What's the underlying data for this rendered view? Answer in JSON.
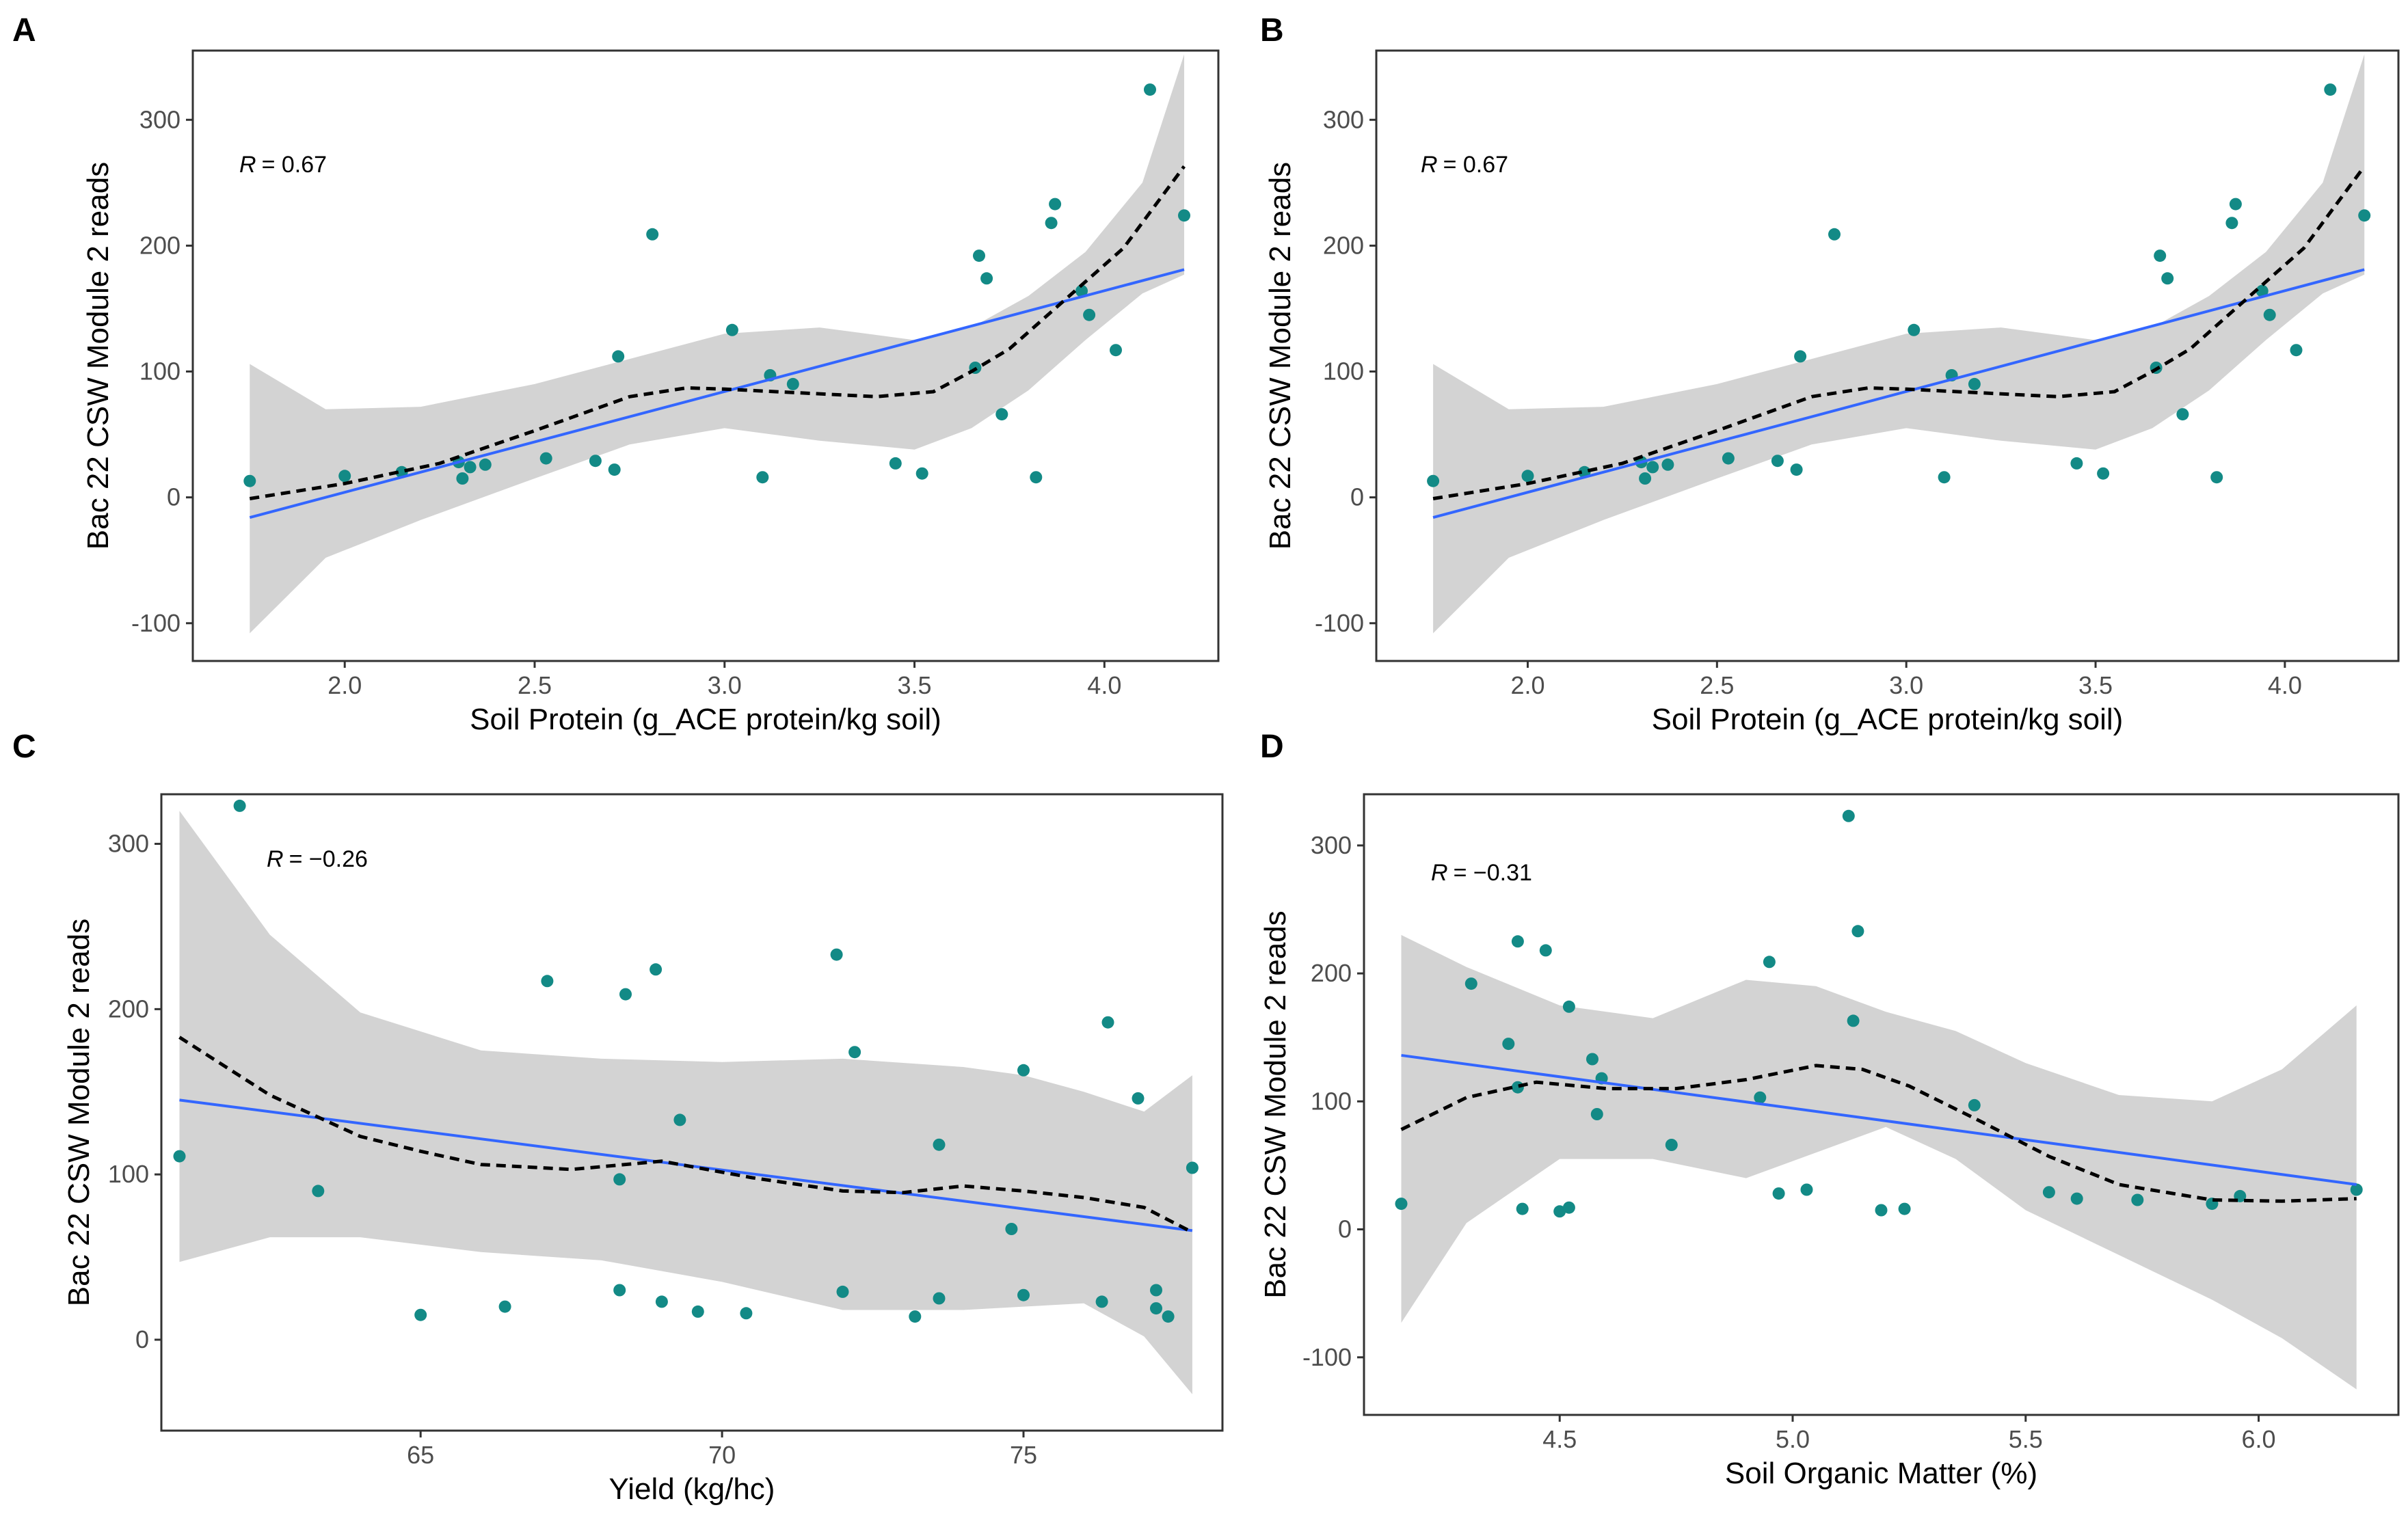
{
  "figure": {
    "colors": {
      "point": "#138A86",
      "linear_fit": "#3366FF",
      "loess": "#000000",
      "ci_band": "#D3D3D3",
      "frame": "#333333"
    }
  },
  "chart_data": [
    {
      "panel": "A",
      "type": "scatter",
      "xlabel": "Soil Protein (g_ACE protein/kg soil)",
      "ylabel": "Bac 22 CSW Module 2 reads",
      "annotation": {
        "r_symbol": "R",
        "r_value": "= 0.67"
      },
      "xlim": [
        1.6,
        4.3
      ],
      "ylim": [
        -130,
        355
      ],
      "xticks": [
        2.0,
        2.5,
        3.0,
        3.5,
        4.0
      ],
      "xtick_labels": [
        "2.0",
        "2.5",
        "3.0",
        "3.5",
        "4.0"
      ],
      "yticks": [
        -100,
        0,
        100,
        200,
        300
      ],
      "ytick_labels": [
        "-100",
        "0",
        "100",
        "200",
        "300"
      ],
      "points": [
        [
          1.75,
          13
        ],
        [
          2.0,
          17
        ],
        [
          2.15,
          20
        ],
        [
          2.3,
          28
        ],
        [
          2.31,
          15
        ],
        [
          2.33,
          24
        ],
        [
          2.37,
          26
        ],
        [
          2.53,
          31
        ],
        [
          2.66,
          29
        ],
        [
          2.71,
          22
        ],
        [
          2.72,
          112
        ],
        [
          2.81,
          209
        ],
        [
          3.02,
          133
        ],
        [
          3.1,
          16
        ],
        [
          3.12,
          97
        ],
        [
          3.18,
          90
        ],
        [
          3.45,
          27
        ],
        [
          3.52,
          19
        ],
        [
          3.66,
          103
        ],
        [
          3.67,
          192
        ],
        [
          3.69,
          174
        ],
        [
          3.73,
          66
        ],
        [
          3.82,
          16
        ],
        [
          3.86,
          218
        ],
        [
          3.87,
          233
        ],
        [
          3.94,
          164
        ],
        [
          3.96,
          145
        ],
        [
          4.03,
          117
        ],
        [
          4.12,
          324
        ],
        [
          4.21,
          224
        ]
      ],
      "linear_fit": {
        "x": [
          1.75,
          4.21
        ],
        "y": [
          -16,
          181
        ]
      },
      "loess": {
        "x": [
          1.75,
          2.0,
          2.25,
          2.5,
          2.75,
          2.9,
          3.0,
          3.2,
          3.4,
          3.55,
          3.65,
          3.75,
          3.9,
          4.05,
          4.21
        ],
        "y": [
          -1,
          11,
          27,
          53,
          80,
          87,
          86,
          83,
          80,
          84,
          100,
          118,
          158,
          198,
          263
        ]
      },
      "ci_upper": {
        "x": [
          1.75,
          1.95,
          2.2,
          2.5,
          2.75,
          3.0,
          3.25,
          3.5,
          3.65,
          3.8,
          3.95,
          4.1,
          4.21
        ],
        "y": [
          106,
          70,
          72,
          90,
          110,
          130,
          135,
          125,
          135,
          160,
          195,
          250,
          352
        ]
      },
      "ci_lower": {
        "x": [
          1.75,
          1.95,
          2.2,
          2.5,
          2.75,
          3.0,
          3.25,
          3.5,
          3.65,
          3.8,
          3.95,
          4.1,
          4.21
        ],
        "y": [
          -108,
          -48,
          -18,
          15,
          42,
          55,
          45,
          38,
          55,
          85,
          125,
          162,
          177
        ]
      }
    },
    {
      "panel": "B",
      "type": "scatter",
      "xlabel": "Soil Protein (g_ACE protein/kg soil)",
      "ylabel": "Bac 22 CSW Module 2 reads",
      "annotation": {
        "r_symbol": "R",
        "r_value": "= 0.67"
      },
      "xlim": [
        1.6,
        4.3
      ],
      "ylim": [
        -130,
        355
      ],
      "xticks": [
        2.0,
        2.5,
        3.0,
        3.5,
        4.0
      ],
      "xtick_labels": [
        "2.0",
        "2.5",
        "3.0",
        "3.5",
        "4.0"
      ],
      "yticks": [
        -100,
        0,
        100,
        200,
        300
      ],
      "ytick_labels": [
        "-100",
        "0",
        "100",
        "200",
        "300"
      ],
      "points": [
        [
          1.75,
          13
        ],
        [
          2.0,
          17
        ],
        [
          2.15,
          20
        ],
        [
          2.3,
          28
        ],
        [
          2.31,
          15
        ],
        [
          2.33,
          24
        ],
        [
          2.37,
          26
        ],
        [
          2.53,
          31
        ],
        [
          2.66,
          29
        ],
        [
          2.71,
          22
        ],
        [
          2.72,
          112
        ],
        [
          2.81,
          209
        ],
        [
          3.02,
          133
        ],
        [
          3.1,
          16
        ],
        [
          3.12,
          97
        ],
        [
          3.18,
          90
        ],
        [
          3.45,
          27
        ],
        [
          3.52,
          19
        ],
        [
          3.66,
          103
        ],
        [
          3.67,
          192
        ],
        [
          3.69,
          174
        ],
        [
          3.73,
          66
        ],
        [
          3.82,
          16
        ],
        [
          3.86,
          218
        ],
        [
          3.87,
          233
        ],
        [
          3.94,
          164
        ],
        [
          3.96,
          145
        ],
        [
          4.03,
          117
        ],
        [
          4.12,
          324
        ],
        [
          4.21,
          224
        ]
      ],
      "linear_fit": {
        "x": [
          1.75,
          4.21
        ],
        "y": [
          -16,
          181
        ]
      },
      "loess": {
        "x": [
          1.75,
          2.0,
          2.25,
          2.5,
          2.75,
          2.9,
          3.0,
          3.2,
          3.4,
          3.55,
          3.65,
          3.75,
          3.9,
          4.05,
          4.21
        ],
        "y": [
          -1,
          11,
          27,
          53,
          80,
          87,
          86,
          83,
          80,
          84,
          100,
          118,
          158,
          198,
          263
        ]
      },
      "ci_upper": {
        "x": [
          1.75,
          1.95,
          2.2,
          2.5,
          2.75,
          3.0,
          3.25,
          3.5,
          3.65,
          3.8,
          3.95,
          4.1,
          4.21
        ],
        "y": [
          106,
          70,
          72,
          90,
          110,
          130,
          135,
          125,
          135,
          160,
          195,
          250,
          352
        ]
      },
      "ci_lower": {
        "x": [
          1.75,
          1.95,
          2.2,
          2.5,
          2.75,
          3.0,
          3.25,
          3.5,
          3.65,
          3.8,
          3.95,
          4.1,
          4.21
        ],
        "y": [
          -108,
          -48,
          -18,
          15,
          42,
          55,
          45,
          38,
          55,
          85,
          125,
          162,
          177
        ]
      }
    },
    {
      "panel": "C",
      "type": "scatter",
      "xlabel": "Yield (kg/hc)",
      "ylabel": "Bac 22 CSW Module 2 reads",
      "annotation": {
        "r_symbol": "R",
        "r_value": "= −0.26"
      },
      "xlim": [
        60.7,
        78.3
      ],
      "ylim": [
        -55,
        330
      ],
      "xticks": [
        65,
        70,
        75
      ],
      "xtick_labels": [
        "65",
        "70",
        "75"
      ],
      "yticks": [
        0,
        100,
        200,
        300
      ],
      "ytick_labels": [
        "0",
        "100",
        "200",
        "300"
      ],
      "points": [
        [
          61,
          111
        ],
        [
          62,
          323
        ],
        [
          63.3,
          90
        ],
        [
          65,
          15
        ],
        [
          66.4,
          20
        ],
        [
          67.1,
          217
        ],
        [
          68.3,
          30
        ],
        [
          68.3,
          97
        ],
        [
          68.4,
          209
        ],
        [
          68.9,
          224
        ],
        [
          69.0,
          23
        ],
        [
          69.3,
          133
        ],
        [
          69.6,
          17
        ],
        [
          70.4,
          16
        ],
        [
          71.9,
          233
        ],
        [
          72.0,
          29
        ],
        [
          72.2,
          174
        ],
        [
          73.2,
          14
        ],
        [
          73.6,
          25
        ],
        [
          73.6,
          118
        ],
        [
          74.8,
          67
        ],
        [
          75.0,
          27
        ],
        [
          75.0,
          163
        ],
        [
          76.3,
          23
        ],
        [
          76.4,
          192
        ],
        [
          76.9,
          146
        ],
        [
          77.2,
          30
        ],
        [
          77.2,
          19
        ],
        [
          77.4,
          14
        ],
        [
          77.8,
          104
        ]
      ],
      "linear_fit": {
        "x": [
          61,
          77.8
        ],
        "y": [
          145,
          66
        ]
      },
      "loess": {
        "x": [
          61,
          62.5,
          64,
          65,
          66,
          67.5,
          69,
          70.5,
          72,
          73,
          74,
          75,
          76,
          77,
          77.8
        ],
        "y": [
          183,
          148,
          123,
          114,
          106,
          103,
          108,
          98,
          90,
          89,
          93,
          90,
          86,
          80,
          65
        ]
      },
      "ci_upper": {
        "x": [
          61,
          62.5,
          64,
          66,
          68,
          70,
          72,
          74,
          75,
          76,
          77,
          77.8
        ],
        "y": [
          320,
          245,
          198,
          175,
          170,
          168,
          170,
          165,
          160,
          150,
          138,
          160
        ]
      },
      "ci_lower": {
        "x": [
          61,
          62.5,
          64,
          66,
          68,
          70,
          72,
          74,
          75,
          76,
          77,
          77.8
        ],
        "y": [
          47,
          62,
          62,
          53,
          48,
          35,
          18,
          18,
          20,
          22,
          2,
          -33
        ]
      }
    },
    {
      "panel": "D",
      "type": "scatter",
      "xlabel": "Soil Organic Matter (%)",
      "ylabel": "Bac 22 CSW Module 2 reads",
      "annotation": {
        "r_symbol": "R",
        "r_value": "= −0.31"
      },
      "xlim": [
        4.08,
        6.3
      ],
      "ylim": [
        -145,
        340
      ],
      "xticks": [
        4.5,
        5.0,
        5.5,
        6.0
      ],
      "xtick_labels": [
        "4.5",
        "5.0",
        "5.5",
        "6.0"
      ],
      "yticks": [
        -100,
        0,
        100,
        200,
        300
      ],
      "ytick_labels": [
        "-100",
        "0",
        "100",
        "200",
        "300"
      ],
      "points": [
        [
          4.16,
          20
        ],
        [
          4.31,
          192
        ],
        [
          4.39,
          145
        ],
        [
          4.41,
          111
        ],
        [
          4.41,
          225
        ],
        [
          4.42,
          16
        ],
        [
          4.47,
          218
        ],
        [
          4.5,
          14
        ],
        [
          4.52,
          17
        ],
        [
          4.52,
          174
        ],
        [
          4.57,
          133
        ],
        [
          4.58,
          90
        ],
        [
          4.59,
          118
        ],
        [
          4.74,
          66
        ],
        [
          4.95,
          209
        ],
        [
          4.97,
          28
        ],
        [
          4.93,
          103
        ],
        [
          5.03,
          31
        ],
        [
          5.12,
          323
        ],
        [
          5.13,
          163
        ],
        [
          5.14,
          233
        ],
        [
          5.19,
          15
        ],
        [
          5.24,
          16
        ],
        [
          5.39,
          97
        ],
        [
          5.55,
          29
        ],
        [
          5.61,
          24
        ],
        [
          5.74,
          23
        ],
        [
          5.9,
          20
        ],
        [
          5.96,
          26
        ],
        [
          6.21,
          31
        ]
      ],
      "linear_fit": {
        "x": [
          4.16,
          6.21
        ],
        "y": [
          136,
          35
        ]
      },
      "loess": {
        "x": [
          4.16,
          4.3,
          4.45,
          4.6,
          4.75,
          4.9,
          5.05,
          5.15,
          5.25,
          5.4,
          5.55,
          5.7,
          5.9,
          6.05,
          6.21
        ],
        "y": [
          78,
          103,
          115,
          110,
          110,
          117,
          128,
          125,
          112,
          85,
          57,
          35,
          23,
          22,
          24
        ]
      },
      "ci_upper": {
        "x": [
          4.16,
          4.3,
          4.5,
          4.7,
          4.9,
          5.05,
          5.2,
          5.35,
          5.5,
          5.7,
          5.9,
          6.05,
          6.21
        ],
        "y": [
          230,
          205,
          175,
          165,
          195,
          190,
          170,
          155,
          130,
          105,
          100,
          125,
          175
        ]
      },
      "ci_lower": {
        "x": [
          4.16,
          4.3,
          4.5,
          4.7,
          4.9,
          5.05,
          5.2,
          5.35,
          5.5,
          5.7,
          5.9,
          6.05,
          6.21
        ],
        "y": [
          -73,
          5,
          55,
          55,
          40,
          60,
          80,
          55,
          15,
          -20,
          -55,
          -85,
          -125
        ]
      }
    }
  ]
}
